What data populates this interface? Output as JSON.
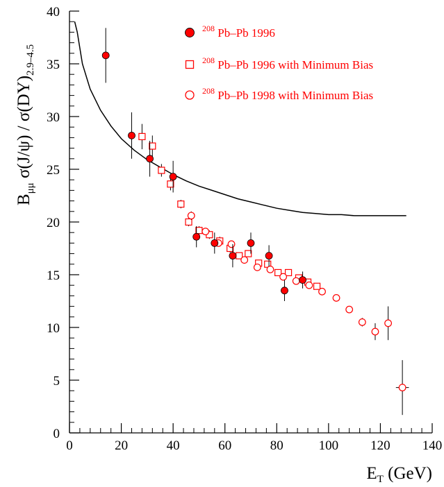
{
  "chart_data": {
    "type": "scatter",
    "xlabel": {
      "main": "E",
      "sub": "T",
      "rest": " (GeV)"
    },
    "ylabel": {
      "a": "B",
      "a_sub": "μμ",
      "b": " σ(J/ψ) / σ(DY)",
      "b_sub": "2.9–4.5"
    },
    "xlim": [
      0,
      140
    ],
    "ylim": [
      0,
      40
    ],
    "x_ticks": [
      "0",
      "20",
      "40",
      "60",
      "80",
      "100",
      "120",
      "140"
    ],
    "y_ticks": [
      "0",
      "5",
      "10",
      "15",
      "20",
      "25",
      "30",
      "35",
      "40"
    ],
    "legend_position": "top-right",
    "colors": {
      "data": "#ff0000",
      "axis": "#000000",
      "curve": "#000000"
    },
    "series": [
      {
        "name_sup": "208",
        "name": " Pb–Pb 1996",
        "marker": "filled-circle",
        "points": [
          {
            "x": 14,
            "y": 35.8,
            "err": 2.6
          },
          {
            "x": 24,
            "y": 28.2,
            "err": 2.2
          },
          {
            "x": 31,
            "y": 26.0,
            "err": 1.7
          },
          {
            "x": 40,
            "y": 24.3,
            "err": 1.5
          },
          {
            "x": 49,
            "y": 18.6,
            "err": 1.0
          },
          {
            "x": 56,
            "y": 18.0,
            "err": 1.0
          },
          {
            "x": 63,
            "y": 16.8,
            "err": 1.1
          },
          {
            "x": 70,
            "y": 18.0,
            "err": 1.0
          },
          {
            "x": 77,
            "y": 16.8,
            "err": 1.0
          },
          {
            "x": 83,
            "y": 13.5,
            "err": 1.0
          },
          {
            "x": 90,
            "y": 14.5,
            "err": 0.8
          }
        ]
      },
      {
        "name_sup": "208",
        "name": " Pb–Pb 1996 with Minimum Bias",
        "marker": "open-square",
        "points": [
          {
            "x": 28,
            "y": 28.1,
            "err": 1.2
          },
          {
            "x": 32,
            "y": 27.2,
            "err": 1.0
          },
          {
            "x": 35.5,
            "y": 24.9,
            "err": 0.6
          },
          {
            "x": 39,
            "y": 23.6,
            "err": 0.6
          },
          {
            "x": 43,
            "y": 21.7,
            "err": 0.4
          },
          {
            "x": 46,
            "y": 20.0,
            "err": 0.4
          },
          {
            "x": 50,
            "y": 19.2,
            "err": 0.4
          },
          {
            "x": 54,
            "y": 18.8,
            "err": 0.4
          },
          {
            "x": 58,
            "y": 18.2,
            "err": 0.4
          },
          {
            "x": 62,
            "y": 17.5,
            "err": 0.4
          },
          {
            "x": 65.5,
            "y": 16.8,
            "err": 0.3
          },
          {
            "x": 69,
            "y": 17.0,
            "err": 0.3
          },
          {
            "x": 73,
            "y": 16.1,
            "err": 0.3
          },
          {
            "x": 76.5,
            "y": 16.0,
            "err": 0.3
          },
          {
            "x": 80.5,
            "y": 15.2,
            "err": 0.3
          },
          {
            "x": 84.5,
            "y": 15.2,
            "err": 0.3
          },
          {
            "x": 88.5,
            "y": 14.7,
            "err": 0.3
          },
          {
            "x": 92,
            "y": 14.3,
            "err": 0.3
          },
          {
            "x": 95.5,
            "y": 13.9,
            "err": 0.3
          }
        ]
      },
      {
        "name_sup": "208",
        "name": " Pb–Pb 1998 with Minimum Bias",
        "marker": "open-circle",
        "points": [
          {
            "x": 47,
            "y": 20.6,
            "err": 0.4
          },
          {
            "x": 52.5,
            "y": 19.1,
            "err": 0.3
          },
          {
            "x": 57.5,
            "y": 18.0,
            "err": 0.3
          },
          {
            "x": 62.5,
            "y": 17.9,
            "err": 0.3
          },
          {
            "x": 67.5,
            "y": 16.4,
            "err": 0.3
          },
          {
            "x": 72.5,
            "y": 15.7,
            "err": 0.3
          },
          {
            "x": 77.5,
            "y": 15.5,
            "err": 0.3
          },
          {
            "x": 82.5,
            "y": 14.8,
            "err": 0.3
          },
          {
            "x": 87.5,
            "y": 14.4,
            "err": 0.3
          },
          {
            "x": 92.5,
            "y": 14.0,
            "err": 0.3
          },
          {
            "x": 97.5,
            "y": 13.4,
            "err": 0.3
          },
          {
            "x": 103,
            "y": 12.8,
            "err": 0.3
          },
          {
            "x": 108,
            "y": 11.7,
            "err": 0.3
          },
          {
            "x": 113,
            "y": 10.5,
            "err": 0.4
          },
          {
            "x": 118,
            "y": 9.6,
            "err": 0.8
          },
          {
            "x": 123,
            "y": 10.4,
            "err": 1.6
          },
          {
            "x": 128.5,
            "y": 4.3,
            "err": 2.6,
            "xerr": 2.5
          }
        ]
      }
    ],
    "curve": {
      "name": "",
      "points": [
        [
          2,
          39.0
        ],
        [
          3,
          38.0
        ],
        [
          5,
          35.0
        ],
        [
          8,
          32.6
        ],
        [
          12,
          30.6
        ],
        [
          16,
          29.1
        ],
        [
          20,
          27.9
        ],
        [
          25,
          26.8
        ],
        [
          30,
          25.9
        ],
        [
          35,
          25.2
        ],
        [
          40,
          24.5
        ],
        [
          45,
          23.9
        ],
        [
          50,
          23.4
        ],
        [
          55,
          23.0
        ],
        [
          60,
          22.6
        ],
        [
          65,
          22.2
        ],
        [
          70,
          21.9
        ],
        [
          75,
          21.6
        ],
        [
          80,
          21.3
        ],
        [
          85,
          21.1
        ],
        [
          90,
          20.9
        ],
        [
          95,
          20.8
        ],
        [
          100,
          20.7
        ],
        [
          105,
          20.7
        ],
        [
          110,
          20.6
        ],
        [
          120,
          20.6
        ],
        [
          130,
          20.6
        ]
      ]
    }
  }
}
